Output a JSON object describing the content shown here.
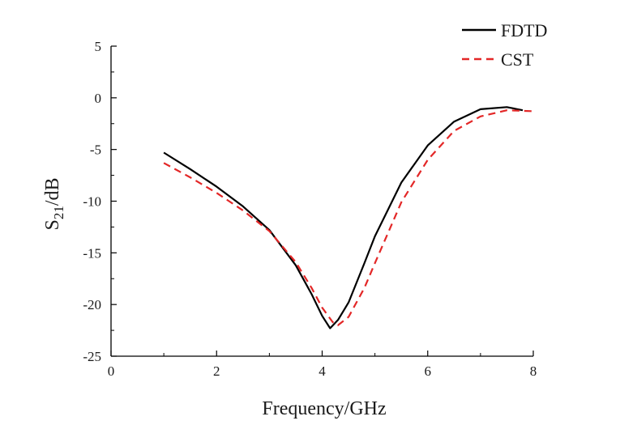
{
  "chart_data": {
    "type": "line",
    "xlabel": "Frequency/GHz",
    "ylabel": {
      "base": "S",
      "sub": "21",
      "rest": "/dB"
    },
    "xlim": [
      0,
      8
    ],
    "ylim": [
      -25,
      5
    ],
    "xticks": [
      "0",
      "2",
      "4",
      "6",
      "8"
    ],
    "xtick_values": [
      0,
      2,
      4,
      6,
      8
    ],
    "yticks": [
      "5",
      "0",
      "-5",
      "-10",
      "-15",
      "-20",
      "-25"
    ],
    "ytick_values": [
      5,
      0,
      -5,
      -10,
      -15,
      -20,
      -25
    ],
    "grid": false,
    "legend_position": "top-right",
    "series": [
      {
        "name": "FDTD",
        "color": "#000000",
        "dash": "solid",
        "x": [
          1.0,
          1.5,
          2.0,
          2.5,
          3.0,
          3.5,
          3.8,
          4.0,
          4.15,
          4.3,
          4.5,
          4.8,
          5.0,
          5.5,
          6.0,
          6.5,
          7.0,
          7.5,
          7.8
        ],
        "y": [
          -5.3,
          -6.9,
          -8.6,
          -10.5,
          -12.8,
          -16.2,
          -19.0,
          -21.1,
          -22.3,
          -21.5,
          -19.8,
          -16.0,
          -13.4,
          -8.2,
          -4.6,
          -2.3,
          -1.1,
          -0.9,
          -1.2
        ]
      },
      {
        "name": "CST",
        "color": "#e32727",
        "dash": "dashed",
        "x": [
          1.0,
          1.5,
          2.0,
          2.5,
          3.0,
          3.5,
          3.8,
          4.0,
          4.2,
          4.3,
          4.5,
          4.8,
          5.0,
          5.5,
          6.0,
          6.5,
          7.0,
          7.5,
          8.0
        ],
        "y": [
          -6.3,
          -7.7,
          -9.2,
          -10.9,
          -12.9,
          -15.9,
          -18.4,
          -20.3,
          -21.7,
          -22.0,
          -21.2,
          -18.4,
          -16.0,
          -10.1,
          -6.0,
          -3.2,
          -1.8,
          -1.2,
          -1.3
        ]
      }
    ]
  }
}
